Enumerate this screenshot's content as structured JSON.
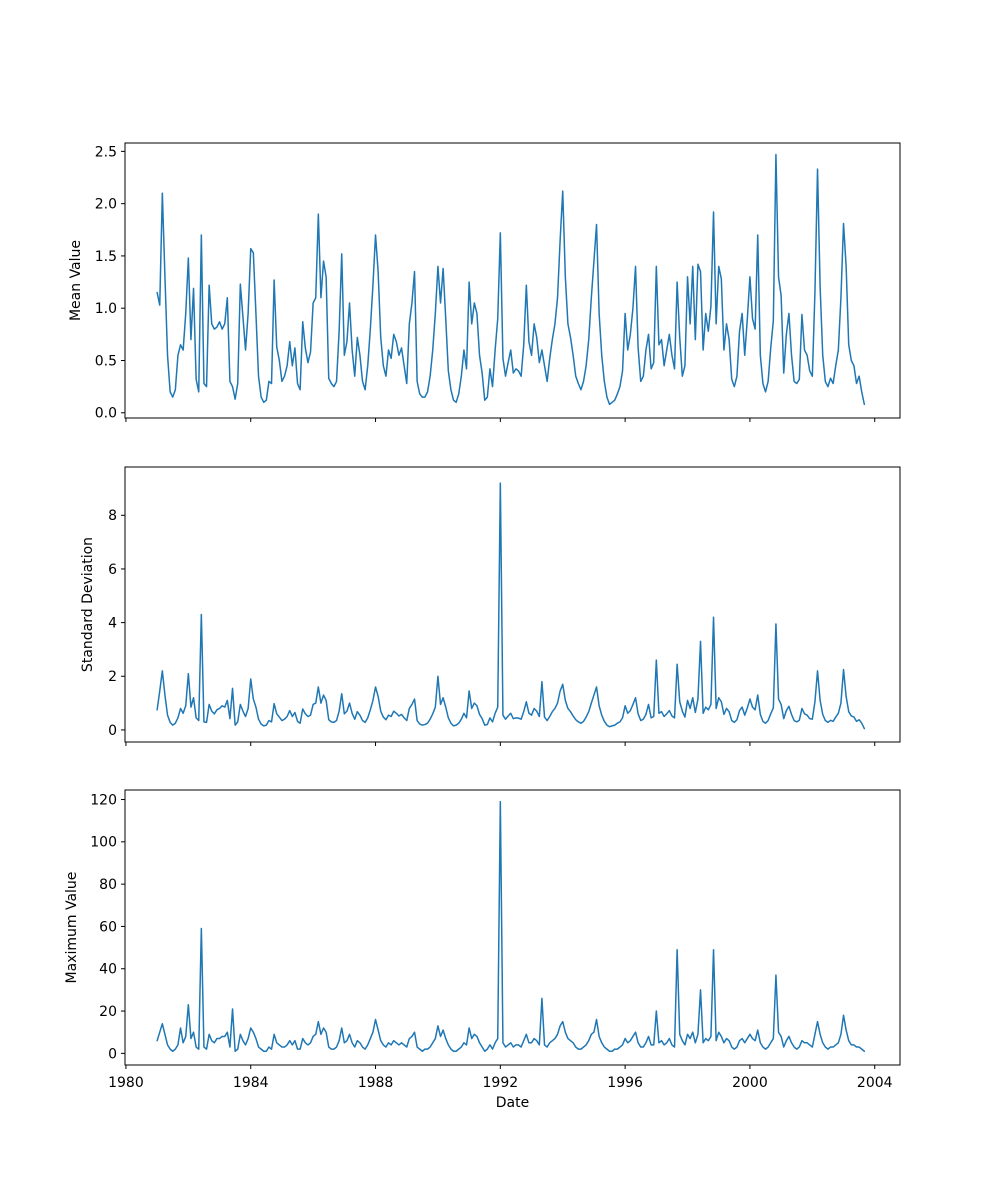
{
  "figure": {
    "background": "#ffffff",
    "line_color": "#1f77b4",
    "spine_color": "#000000",
    "tick_color": "#000000"
  },
  "chart_data": [
    {
      "type": "line",
      "name": "mean-value",
      "ylabel": "Mean Value",
      "xlabel": "",
      "show_x_labels": false,
      "legend": "none",
      "grid": false,
      "x_start": 1981.0,
      "x_step_years": 0.0833333,
      "xlim": [
        1979.97,
        2004.81
      ],
      "ylim": [
        -0.05,
        2.58
      ],
      "xticks": [
        1980,
        1984,
        1988,
        1992,
        1996,
        2000,
        2004
      ],
      "xtick_labels": [
        "1980",
        "1984",
        "1988",
        "1992",
        "1996",
        "2000",
        "2004"
      ],
      "yticks": [
        0.0,
        0.5,
        1.0,
        1.5,
        2.0,
        2.5
      ],
      "ytick_labels": [
        "0.0",
        "0.5",
        "1.0",
        "1.5",
        "2.0",
        "2.5"
      ],
      "values": [
        1.15,
        1.03,
        2.1,
        1.3,
        0.55,
        0.2,
        0.15,
        0.22,
        0.55,
        0.65,
        0.6,
        0.95,
        1.48,
        0.7,
        1.19,
        0.32,
        0.2,
        1.7,
        0.28,
        0.25,
        1.22,
        0.85,
        0.8,
        0.82,
        0.87,
        0.8,
        0.85,
        1.1,
        0.3,
        0.25,
        0.13,
        0.28,
        1.23,
        0.92,
        0.6,
        0.95,
        1.57,
        1.53,
        0.95,
        0.35,
        0.15,
        0.1,
        0.12,
        0.3,
        0.28,
        1.27,
        0.63,
        0.5,
        0.3,
        0.35,
        0.45,
        0.68,
        0.45,
        0.62,
        0.28,
        0.22,
        0.87,
        0.62,
        0.48,
        0.58,
        1.05,
        1.1,
        1.9,
        1.1,
        1.45,
        1.3,
        0.33,
        0.28,
        0.25,
        0.3,
        0.78,
        1.52,
        0.55,
        0.68,
        1.05,
        0.6,
        0.35,
        0.72,
        0.55,
        0.3,
        0.22,
        0.45,
        0.8,
        1.22,
        1.7,
        1.35,
        0.72,
        0.45,
        0.35,
        0.6,
        0.52,
        0.75,
        0.68,
        0.55,
        0.62,
        0.45,
        0.28,
        0.85,
        1.05,
        1.35,
        0.3,
        0.18,
        0.15,
        0.15,
        0.2,
        0.35,
        0.6,
        0.95,
        1.4,
        1.05,
        1.38,
        0.9,
        0.4,
        0.22,
        0.12,
        0.1,
        0.18,
        0.35,
        0.6,
        0.42,
        1.25,
        0.85,
        1.05,
        0.95,
        0.55,
        0.38,
        0.12,
        0.15,
        0.42,
        0.25,
        0.6,
        0.9,
        1.72,
        0.52,
        0.35,
        0.48,
        0.6,
        0.38,
        0.42,
        0.4,
        0.35,
        0.65,
        1.22,
        0.68,
        0.55,
        0.85,
        0.72,
        0.48,
        0.6,
        0.45,
        0.3,
        0.52,
        0.7,
        0.85,
        1.1,
        1.65,
        2.12,
        1.3,
        0.85,
        0.72,
        0.55,
        0.35,
        0.28,
        0.22,
        0.3,
        0.45,
        0.7,
        1.1,
        1.45,
        1.8,
        0.95,
        0.55,
        0.3,
        0.15,
        0.08,
        0.1,
        0.12,
        0.18,
        0.25,
        0.4,
        0.95,
        0.6,
        0.75,
        1.0,
        1.4,
        0.62,
        0.3,
        0.35,
        0.6,
        0.75,
        0.42,
        0.48,
        1.4,
        0.65,
        0.7,
        0.45,
        0.6,
        0.75,
        0.55,
        0.42,
        1.25,
        0.72,
        0.35,
        0.45,
        1.3,
        0.85,
        1.4,
        0.7,
        1.42,
        1.35,
        0.6,
        0.95,
        0.78,
        1.02,
        1.92,
        0.85,
        1.4,
        1.28,
        0.6,
        0.85,
        0.7,
        0.32,
        0.25,
        0.35,
        0.78,
        0.95,
        0.55,
        0.9,
        1.3,
        0.9,
        0.8,
        1.7,
        0.55,
        0.28,
        0.2,
        0.3,
        0.62,
        0.88,
        2.47,
        1.3,
        1.12,
        0.38,
        0.75,
        0.95,
        0.55,
        0.3,
        0.28,
        0.32,
        0.94,
        0.6,
        0.55,
        0.4,
        0.35,
        1.15,
        2.33,
        1.2,
        0.55,
        0.3,
        0.25,
        0.33,
        0.28,
        0.45,
        0.6,
        1.1,
        1.81,
        1.4,
        0.65,
        0.5,
        0.45,
        0.28,
        0.35,
        0.2,
        0.08
      ]
    },
    {
      "type": "line",
      "name": "standard-deviation",
      "ylabel": "Standard Deviation",
      "xlabel": "",
      "show_x_labels": false,
      "legend": "none",
      "grid": false,
      "x_start": 1981.0,
      "x_step_years": 0.0833333,
      "xlim": [
        1979.97,
        2004.81
      ],
      "ylim": [
        -0.45,
        9.8
      ],
      "xticks": [
        1980,
        1984,
        1988,
        1992,
        1996,
        2000,
        2004
      ],
      "xtick_labels": [
        "1980",
        "1984",
        "1988",
        "1992",
        "1996",
        "2000",
        "2004"
      ],
      "yticks": [
        0,
        2,
        4,
        6,
        8
      ],
      "ytick_labels": [
        "0",
        "2",
        "4",
        "6",
        "8"
      ],
      "values": [
        0.75,
        1.45,
        2.2,
        1.3,
        0.55,
        0.28,
        0.18,
        0.25,
        0.45,
        0.8,
        0.62,
        0.9,
        2.1,
        0.85,
        1.2,
        0.45,
        0.35,
        4.3,
        0.3,
        0.28,
        0.95,
        0.7,
        0.6,
        0.75,
        0.8,
        0.9,
        0.85,
        1.1,
        0.42,
        1.55,
        0.18,
        0.3,
        0.95,
        0.7,
        0.5,
        0.8,
        1.9,
        1.15,
        0.85,
        0.4,
        0.22,
        0.15,
        0.18,
        0.35,
        0.3,
        0.98,
        0.6,
        0.48,
        0.35,
        0.4,
        0.5,
        0.72,
        0.5,
        0.65,
        0.32,
        0.25,
        0.78,
        0.6,
        0.5,
        0.55,
        0.95,
        1.0,
        1.6,
        1.0,
        1.3,
        1.1,
        0.38,
        0.3,
        0.28,
        0.35,
        0.7,
        1.35,
        0.6,
        0.7,
        1.0,
        0.62,
        0.4,
        0.68,
        0.55,
        0.35,
        0.28,
        0.45,
        0.75,
        1.1,
        1.6,
        1.25,
        0.7,
        0.48,
        0.38,
        0.55,
        0.5,
        0.7,
        0.62,
        0.52,
        0.58,
        0.45,
        0.35,
        0.8,
        0.95,
        1.15,
        0.35,
        0.22,
        0.18,
        0.2,
        0.25,
        0.4,
        0.6,
        0.85,
        2.0,
        0.95,
        1.2,
        0.85,
        0.45,
        0.25,
        0.15,
        0.18,
        0.25,
        0.4,
        0.62,
        0.45,
        1.45,
        0.8,
        1.0,
        0.9,
        0.58,
        0.42,
        0.18,
        0.2,
        0.45,
        0.3,
        0.62,
        0.85,
        9.2,
        0.55,
        0.4,
        0.52,
        0.62,
        0.42,
        0.45,
        0.44,
        0.4,
        0.68,
        1.05,
        0.62,
        0.55,
        0.8,
        0.7,
        0.5,
        1.8,
        0.48,
        0.35,
        0.5,
        0.68,
        0.8,
        1.0,
        1.45,
        1.7,
        1.1,
        0.8,
        0.68,
        0.52,
        0.38,
        0.3,
        0.25,
        0.32,
        0.48,
        0.68,
        1.0,
        1.3,
        1.6,
        0.9,
        0.55,
        0.32,
        0.18,
        0.12,
        0.15,
        0.18,
        0.25,
        0.3,
        0.45,
        0.9,
        0.62,
        0.72,
        0.95,
        1.2,
        0.6,
        0.35,
        0.4,
        0.58,
        0.95,
        0.45,
        0.5,
        2.6,
        0.62,
        0.68,
        0.5,
        0.6,
        0.72,
        0.52,
        0.45,
        2.45,
        1.05,
        0.7,
        0.48,
        1.1,
        0.8,
        1.2,
        0.65,
        1.15,
        3.3,
        0.62,
        0.85,
        0.75,
        0.95,
        4.2,
        0.8,
        1.2,
        1.05,
        0.58,
        0.8,
        0.68,
        0.35,
        0.28,
        0.38,
        0.72,
        0.85,
        0.55,
        0.82,
        1.15,
        0.85,
        0.75,
        1.3,
        0.58,
        0.32,
        0.25,
        0.35,
        0.6,
        0.82,
        3.95,
        1.15,
        0.95,
        0.42,
        0.72,
        0.88,
        0.58,
        0.35,
        0.3,
        0.36,
        0.8,
        0.6,
        0.55,
        0.42,
        0.4,
        1.05,
        2.2,
        1.1,
        0.58,
        0.35,
        0.28,
        0.36,
        0.32,
        0.48,
        0.62,
        1.0,
        2.25,
        1.25,
        0.68,
        0.52,
        0.48,
        0.32,
        0.38,
        0.25,
        0.05
      ]
    },
    {
      "type": "line",
      "name": "maximum-value",
      "ylabel": "Maximum Value",
      "xlabel": "Date",
      "show_x_labels": true,
      "legend": "none",
      "grid": false,
      "x_start": 1981.0,
      "x_step_years": 0.0833333,
      "xlim": [
        1979.97,
        2004.81
      ],
      "ylim": [
        -5.5,
        124.5
      ],
      "xticks": [
        1980,
        1984,
        1988,
        1992,
        1996,
        2000,
        2004
      ],
      "xtick_labels": [
        "1980",
        "1984",
        "1988",
        "1992",
        "1996",
        "2000",
        "2004"
      ],
      "yticks": [
        0,
        20,
        40,
        60,
        80,
        100,
        120
      ],
      "ytick_labels": [
        "0",
        "20",
        "40",
        "60",
        "80",
        "100",
        "120"
      ],
      "values": [
        6,
        10,
        14,
        9,
        4,
        2,
        1,
        2,
        4,
        12,
        5,
        8,
        23,
        7,
        10,
        3,
        2,
        59,
        3,
        2,
        9,
        6,
        5,
        7,
        7,
        8,
        8,
        10,
        3,
        21,
        1,
        2,
        9,
        6,
        4,
        7,
        12,
        10,
        7,
        3,
        2,
        1,
        1,
        3,
        2,
        9,
        5,
        4,
        3,
        3,
        4,
        6,
        4,
        6,
        2,
        2,
        7,
        5,
        4,
        5,
        8,
        9,
        15,
        9,
        12,
        10,
        3,
        2,
        2,
        3,
        6,
        12,
        5,
        6,
        9,
        5,
        3,
        6,
        5,
        3,
        2,
        4,
        7,
        10,
        16,
        11,
        6,
        4,
        3,
        5,
        4,
        6,
        5,
        4,
        5,
        4,
        3,
        7,
        8,
        10,
        3,
        2,
        1,
        2,
        2,
        3,
        5,
        7,
        13,
        8,
        11,
        7,
        4,
        2,
        1,
        1,
        2,
        3,
        5,
        4,
        12,
        7,
        9,
        8,
        5,
        3,
        1,
        2,
        4,
        2,
        5,
        7,
        119,
        5,
        3,
        4,
        5,
        3,
        4,
        4,
        3,
        6,
        9,
        5,
        5,
        7,
        6,
        4,
        26,
        4,
        3,
        5,
        6,
        7,
        9,
        13,
        15,
        10,
        7,
        6,
        5,
        3,
        2,
        2,
        3,
        4,
        6,
        9,
        10,
        16,
        8,
        5,
        3,
        2,
        1,
        1,
        2,
        2,
        3,
        4,
        7,
        5,
        6,
        8,
        10,
        5,
        3,
        3,
        5,
        8,
        4,
        4,
        20,
        5,
        6,
        4,
        5,
        7,
        4,
        3,
        49,
        9,
        6,
        4,
        9,
        7,
        10,
        5,
        9,
        30,
        5,
        7,
        6,
        8,
        49,
        6,
        10,
        8,
        5,
        7,
        6,
        3,
        2,
        3,
        6,
        7,
        5,
        7,
        9,
        7,
        6,
        11,
        5,
        3,
        2,
        3,
        5,
        7,
        37,
        10,
        8,
        3,
        6,
        8,
        5,
        3,
        2,
        3,
        6,
        5,
        5,
        4,
        3,
        9,
        15,
        9,
        5,
        3,
        2,
        3,
        3,
        4,
        5,
        9,
        18,
        11,
        6,
        4,
        4,
        3,
        3,
        2,
        1
      ]
    }
  ]
}
